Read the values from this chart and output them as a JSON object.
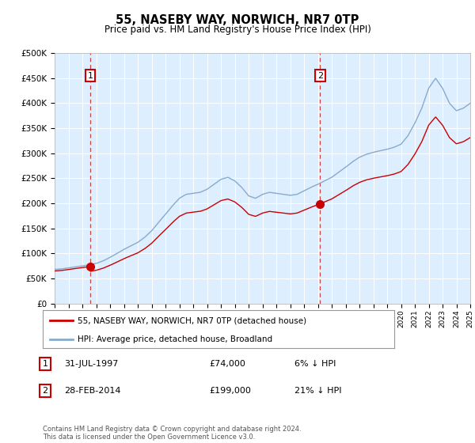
{
  "title": "55, NASEBY WAY, NORWICH, NR7 0TP",
  "subtitle": "Price paid vs. HM Land Registry's House Price Index (HPI)",
  "legend_line1": "55, NASEBY WAY, NORWICH, NR7 0TP (detached house)",
  "legend_line2": "HPI: Average price, detached house, Broadland",
  "annotation1_label": "1",
  "annotation1_date": "31-JUL-1997",
  "annotation1_price": "£74,000",
  "annotation1_hpi": "6% ↓ HPI",
  "annotation2_label": "2",
  "annotation2_date": "28-FEB-2014",
  "annotation2_price": "£199,000",
  "annotation2_hpi": "21% ↓ HPI",
  "footnote": "Contains HM Land Registry data © Crown copyright and database right 2024.\nThis data is licensed under the Open Government Licence v3.0.",
  "sale1_year": 1997.58,
  "sale1_value": 74000,
  "sale2_year": 2014.16,
  "sale2_value": 199000,
  "red_line_color": "#cc0000",
  "blue_line_color": "#88aacc",
  "bg_color": "#ffffff",
  "plot_bg_color": "#ddeeff",
  "annotation_box_color": "#cc0000",
  "dashed_line_color": "#cc4444",
  "ylim_min": 0,
  "ylim_max": 500000,
  "ytick_step": 50000,
  "xmin": 1995,
  "xmax": 2025,
  "hpi_years": [
    1995.0,
    1995.5,
    1996.0,
    1996.5,
    1997.0,
    1997.5,
    1998.0,
    1998.5,
    1999.0,
    1999.5,
    2000.0,
    2000.5,
    2001.0,
    2001.5,
    2002.0,
    2002.5,
    2003.0,
    2003.5,
    2004.0,
    2004.5,
    2005.0,
    2005.5,
    2006.0,
    2006.5,
    2007.0,
    2007.5,
    2008.0,
    2008.5,
    2009.0,
    2009.5,
    2010.0,
    2010.5,
    2011.0,
    2011.5,
    2012.0,
    2012.5,
    2013.0,
    2013.5,
    2014.0,
    2014.5,
    2015.0,
    2015.5,
    2016.0,
    2016.5,
    2017.0,
    2017.5,
    2018.0,
    2018.5,
    2019.0,
    2019.5,
    2020.0,
    2020.5,
    2021.0,
    2021.5,
    2022.0,
    2022.5,
    2023.0,
    2023.5,
    2024.0,
    2024.5,
    2025.0
  ],
  "hpi_values": [
    68000,
    69000,
    71000,
    73000,
    75000,
    77000,
    80000,
    85000,
    92000,
    100000,
    108000,
    115000,
    122000,
    132000,
    145000,
    162000,
    178000,
    195000,
    210000,
    218000,
    220000,
    222000,
    228000,
    238000,
    248000,
    252000,
    245000,
    232000,
    215000,
    210000,
    218000,
    222000,
    220000,
    218000,
    216000,
    218000,
    225000,
    232000,
    238000,
    245000,
    252000,
    262000,
    272000,
    283000,
    292000,
    298000,
    302000,
    305000,
    308000,
    312000,
    318000,
    335000,
    360000,
    390000,
    430000,
    450000,
    430000,
    400000,
    385000,
    390000,
    400000
  ]
}
